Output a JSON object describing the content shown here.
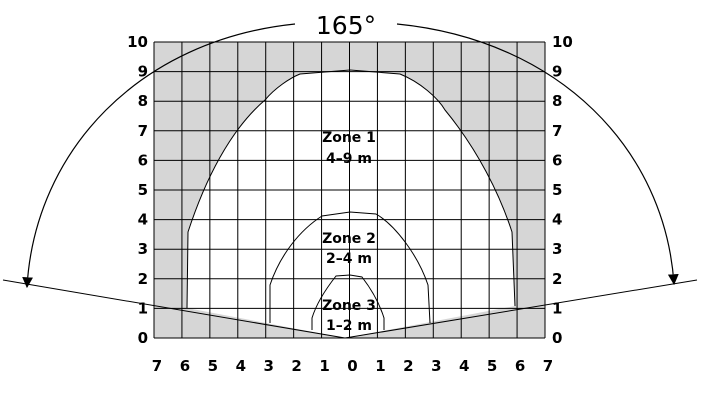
{
  "angle_label": "165°",
  "y_axis": {
    "labels": [
      "10",
      "9",
      "8",
      "7",
      "6",
      "5",
      "4",
      "3",
      "2",
      "1",
      "0"
    ]
  },
  "x_axis": {
    "labels": [
      "7",
      "6",
      "5",
      "4",
      "3",
      "2",
      "1",
      "0",
      "1",
      "2",
      "3",
      "4",
      "5",
      "6",
      "7"
    ]
  },
  "zones": [
    {
      "name": "Zone 1",
      "range": "4–9 m"
    },
    {
      "name": "Zone 2",
      "range": "2–4 m"
    },
    {
      "name": "Zone 3",
      "range": "1–2 m"
    }
  ],
  "colors": {
    "grid_fill": "#d6d6d6",
    "zone_fill": "#ffffff",
    "line": "#000000"
  }
}
